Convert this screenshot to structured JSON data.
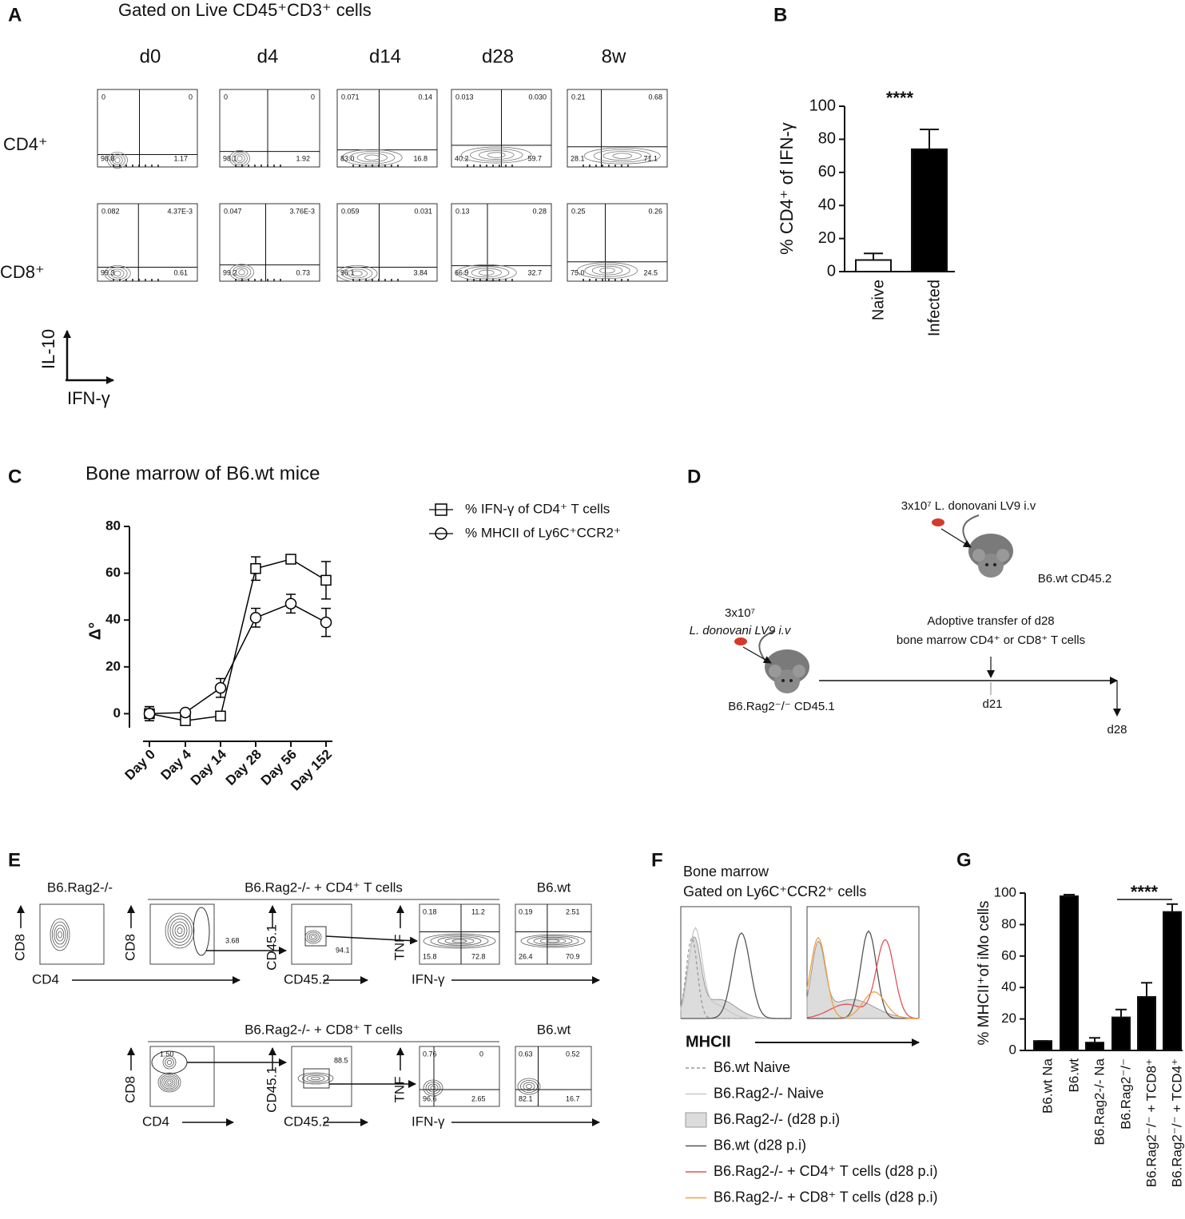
{
  "panel_labels": [
    "A",
    "B",
    "C",
    "D",
    "E",
    "F",
    "G"
  ],
  "panel_a": {
    "title": "Gated on Live CD45⁺CD3⁺ cells",
    "columns": [
      "d0",
      "d4",
      "d14",
      "d28",
      "8w"
    ],
    "rows": [
      {
        "label": "CD4⁺",
        "quadrants": [
          [
            "0",
            "0",
            "98.8",
            "1.17"
          ],
          [
            "0",
            "0",
            "98.1",
            "1.92"
          ],
          [
            "0.071",
            "0.14",
            "83.0",
            "16.8"
          ],
          [
            "0.013",
            "0.030",
            "40.2",
            "59.7"
          ],
          [
            "0.21",
            "0.68",
            "28.1",
            "71.1"
          ]
        ]
      },
      {
        "label": "CD8⁺",
        "quadrants": [
          [
            "0.082",
            "4.37E-3",
            "99.3",
            "0.61"
          ],
          [
            "0.047",
            "3.76E-3",
            "99.2",
            "0.73"
          ],
          [
            "0.059",
            "0.031",
            "96.1",
            "3.84"
          ],
          [
            "0.13",
            "0.28",
            "66.9",
            "32.7"
          ],
          [
            "0.25",
            "0.26",
            "75.0",
            "24.5"
          ]
        ]
      }
    ],
    "y_axis": "IL-10",
    "x_axis": "IFN-γ"
  },
  "chart_data": [
    {
      "type": "bar",
      "annotation": "****",
      "ylabel": "% CD4⁺ of IFN-γ",
      "categories": [
        "Naive",
        "Infected"
      ],
      "values": [
        7,
        74
      ],
      "errors": [
        4,
        12
      ],
      "colors": [
        "#ffffff",
        "#000000"
      ],
      "ylim": [
        0,
        100
      ],
      "yticks": [
        0,
        20,
        40,
        60,
        80,
        100
      ]
    },
    {
      "type": "line",
      "title": "Bone marrow of B6.wt mice",
      "ylabel": "Δ°",
      "categories": [
        "Day 0",
        "Day 4",
        "Day 14",
        "Day 28",
        "Day 56",
        "Day 152"
      ],
      "series": [
        {
          "name": "% IFN-γ of CD4⁺ T cells",
          "marker": "square",
          "color": "#000000",
          "values": [
            0,
            -3,
            -1,
            62,
            66,
            57
          ],
          "errors": [
            3,
            1,
            1,
            5,
            1,
            8
          ]
        },
        {
          "name": "% MHCII of Ly6C⁺CCR2⁺",
          "marker": "circle",
          "color": "#000000",
          "values": [
            0,
            0.5,
            11,
            41,
            47,
            39
          ],
          "errors": [
            3,
            1,
            4,
            4,
            4,
            6
          ]
        }
      ],
      "ylim": [
        -6,
        80
      ],
      "yticks": [
        0,
        20,
        40,
        60,
        80
      ]
    },
    {
      "type": "bar",
      "annotation": "****",
      "ylabel": "% MHCII⁺of iMo cells",
      "categories": [
        "B6.wt Na",
        "B6.wt",
        "B6.Rag2-/- Na",
        "B6.Rag2⁻/⁻",
        "B6.Rag2⁻/⁻ + TCD8⁺",
        "B6.Rag2⁻/⁻ + TCD4⁺"
      ],
      "values": [
        6,
        98,
        5,
        21,
        34,
        88
      ],
      "errors": [
        0,
        1,
        3,
        5,
        9,
        5
      ],
      "colors": [
        "#000000",
        "#000000",
        "#000000",
        "#000000",
        "#000000",
        "#000000"
      ],
      "ylim": [
        0,
        100
      ],
      "yticks": [
        0,
        20,
        40,
        60,
        80,
        100
      ]
    }
  ],
  "panel_d": {
    "left_dose": "3x10⁷",
    "left_strain": "L. donovani LV9 i.v",
    "left_mouse": "B6.Rag2⁻/⁻ CD45.1",
    "right_dose": "3x10⁷ L. donovani LV9 i.v",
    "right_mouse": "B6.wt CD45.2",
    "transfer": [
      "Adoptive transfer of d28",
      "bone marrow CD4⁺ or CD8⁺ T cells"
    ],
    "timepoints": [
      "d21",
      "d28"
    ]
  },
  "panel_e": {
    "titles": [
      "B6.Rag2-/-",
      "B6.Rag2-/- + CD4⁺ T cells",
      "B6.wt",
      "B6.Rag2-/- + CD8⁺ T cells",
      "B6.wt"
    ],
    "axis_labels": [
      "CD8",
      "CD4",
      "CD8",
      "CD45.1",
      "CD45.2",
      "TNF",
      "IFN-γ",
      "CD8",
      "CD4",
      "CD45.1",
      "CD45.2",
      "TNF",
      "IFN-γ"
    ],
    "gates": [
      "3.68",
      "94.1",
      "0.18",
      "11.2",
      "15.8",
      "72.8",
      "0.19",
      "2.51",
      "26.4",
      "70.9",
      "1.50",
      "88.5",
      "0.76",
      "0",
      "96.6",
      "2.65",
      "0.63",
      "0.52",
      "82.1",
      "16.7"
    ]
  },
  "panel_f": {
    "title": [
      "Bone marrow",
      "Gated on Ly6C⁺CCR2⁺ cells"
    ],
    "x_label": "MHCII",
    "legend": [
      {
        "name": "B6.wt Naive",
        "color": "#9a9a9a",
        "style": "dashed"
      },
      {
        "name": "B6.Rag2-/- Naive",
        "color": "#c8c8c8",
        "style": "solid"
      },
      {
        "name": "B6.Rag2-/- (d28 p.i)",
        "color": "#9a9a9a",
        "style": "filled"
      },
      {
        "name": "B6.wt (d28 p.i)",
        "color": "#555555",
        "style": "solid"
      },
      {
        "name": "B6.Rag2-/- + CD4⁺ T cells (d28 p.i)",
        "color": "#e0525a",
        "style": "solid"
      },
      {
        "name": "B6.Rag2-/- + CD8⁺ T cells (d28 p.i)",
        "color": "#f0a040",
        "style": "solid"
      }
    ]
  }
}
